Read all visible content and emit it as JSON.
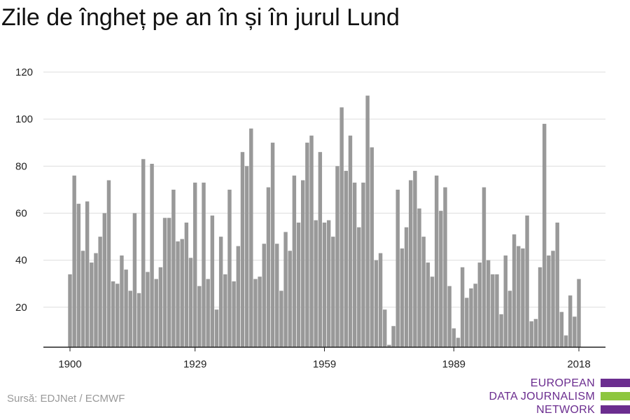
{
  "title": "Zile de îngheț pe an în și în jurul Lund",
  "source": "Sursă: EDJNet / ECMWF",
  "logo": {
    "lines": [
      "EUROPEAN",
      "DATA JOURNALISM",
      "NETWORK"
    ],
    "colors": {
      "text": "#6b2d8f",
      "bar_purple": "#6b2d8f",
      "bar_green": "#8dc63f"
    }
  },
  "chart_data": {
    "type": "bar",
    "title": "Zile de îngheț pe an în și în jurul Lund",
    "xlabel": "",
    "ylabel": "",
    "ylim": [
      3,
      120
    ],
    "yticks": [
      20,
      40,
      60,
      80,
      100,
      120
    ],
    "xticks": [
      "1900",
      "1929",
      "1959",
      "1989",
      "2018"
    ],
    "bar_color": "#999999",
    "grid": true,
    "x_start": 1900,
    "x_end": 2018,
    "values": [
      34,
      76,
      64,
      44,
      65,
      39,
      43,
      50,
      60,
      74,
      31,
      30,
      42,
      36,
      27,
      60,
      26,
      83,
      35,
      81,
      32,
      37,
      58,
      58,
      70,
      48,
      49,
      56,
      41,
      73,
      29,
      73,
      32,
      59,
      19,
      50,
      34,
      70,
      31,
      46,
      86,
      80,
      96,
      32,
      33,
      47,
      71,
      90,
      47,
      27,
      52,
      44,
      76,
      56,
      74,
      90,
      93,
      57,
      86,
      56,
      57,
      50,
      80,
      105,
      78,
      93,
      73,
      54,
      73,
      110,
      88,
      40,
      43,
      19,
      4,
      12,
      70,
      45,
      54,
      74,
      78,
      62,
      50,
      39,
      33,
      76,
      61,
      71,
      29,
      11,
      7,
      37,
      24,
      28,
      30,
      39,
      71,
      40,
      34,
      34,
      17,
      42,
      27,
      51,
      46,
      45,
      59,
      14,
      15,
      37,
      98,
      42,
      44,
      56,
      18,
      8,
      25,
      16,
      32
    ]
  }
}
